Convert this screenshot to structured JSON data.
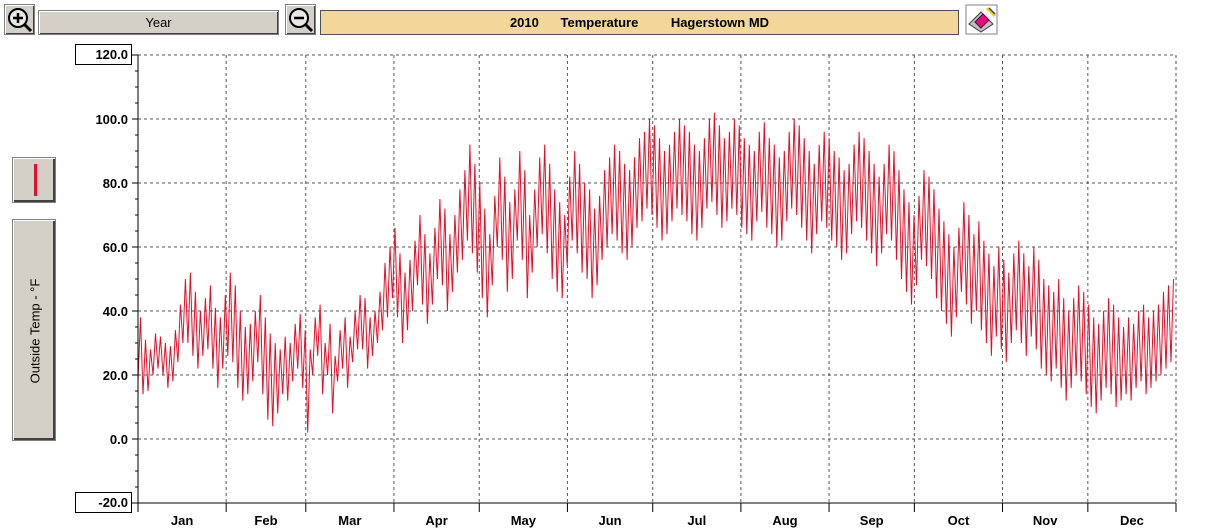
{
  "toolbar": {
    "zoom_in_icon": "zoom-in-magnifier",
    "zoom_out_icon": "zoom-out-magnifier",
    "period_label": "Year",
    "title": "2010      Temperature         Hagerstown MD",
    "print_icon": "printer-with-pen-icon"
  },
  "side": {
    "series_color": "#e0102a",
    "axis_label": "Outside Temp - °F"
  },
  "chart_data": {
    "type": "line",
    "title": "2010      Temperature         Hagerstown MD",
    "ylabel": "Outside Temp - °F",
    "ylim": [
      -20.0,
      120.0
    ],
    "yticks": [
      "120.0",
      "100.0",
      "80.0",
      "60.0",
      "40.0",
      "20.0",
      "0.0",
      "-20.0"
    ],
    "months": [
      "Jan",
      "Feb",
      "Mar",
      "Apr",
      "May",
      "Jun",
      "Jul",
      "Aug",
      "Sep",
      "Oct",
      "Nov",
      "Dec"
    ],
    "grid": true,
    "line_color": "#e0102a",
    "daily_high": [
      38,
      31,
      28,
      33,
      32,
      30,
      29,
      34,
      42,
      50,
      52,
      46,
      40,
      44,
      48,
      41,
      38,
      45,
      52,
      48,
      40,
      35,
      36,
      40,
      45,
      38,
      33,
      30,
      28,
      32,
      30,
      36,
      39,
      34,
      28,
      38,
      42,
      30,
      36,
      26,
      34,
      38,
      32,
      40,
      45,
      44,
      38,
      40,
      46,
      55,
      60,
      66,
      58,
      52,
      56,
      62,
      70,
      64,
      58,
      66,
      75,
      72,
      64,
      70,
      78,
      84,
      92,
      86,
      80,
      72,
      64,
      76,
      88,
      82,
      74,
      78,
      90,
      84,
      70,
      78,
      88,
      92,
      86,
      78,
      74,
      70,
      82,
      90,
      86,
      80,
      78,
      72,
      76,
      84,
      88,
      92,
      90,
      86,
      84,
      88,
      94,
      96,
      100,
      98,
      94,
      90,
      92,
      96,
      100,
      98,
      96,
      92,
      90,
      94,
      100,
      102,
      98,
      94,
      96,
      100,
      98,
      94,
      92,
      90,
      96,
      99,
      94,
      92,
      88,
      90,
      96,
      100,
      98,
      94,
      90,
      86,
      92,
      96,
      94,
      90,
      88,
      84,
      86,
      92,
      96,
      94,
      90,
      86,
      82,
      86,
      92,
      90,
      84,
      78,
      74,
      70,
      76,
      84,
      82,
      78,
      72,
      68,
      64,
      60,
      66,
      74,
      70,
      64,
      68,
      62,
      58,
      54,
      60,
      56,
      52,
      58,
      62,
      58,
      54,
      60,
      56,
      50,
      48,
      46,
      50,
      44,
      40,
      44,
      48,
      46,
      42,
      38,
      36,
      40,
      44,
      42,
      38,
      35,
      38,
      36,
      40,
      42,
      38,
      40,
      42,
      46,
      48,
      50
    ],
    "daily_low": [
      18,
      14,
      15,
      20,
      22,
      20,
      16,
      18,
      24,
      30,
      30,
      26,
      22,
      26,
      28,
      22,
      16,
      22,
      26,
      24,
      16,
      12,
      14,
      18,
      24,
      14,
      6,
      4,
      8,
      14,
      12,
      18,
      22,
      16,
      2,
      20,
      26,
      14,
      20,
      8,
      18,
      22,
      16,
      24,
      28,
      28,
      22,
      26,
      30,
      34,
      38,
      44,
      38,
      30,
      34,
      40,
      48,
      42,
      36,
      42,
      50,
      48,
      40,
      46,
      52,
      56,
      62,
      58,
      52,
      44,
      38,
      48,
      60,
      56,
      46,
      50,
      62,
      56,
      44,
      52,
      60,
      64,
      58,
      50,
      46,
      44,
      54,
      62,
      58,
      52,
      50,
      44,
      48,
      56,
      60,
      64,
      62,
      58,
      56,
      60,
      66,
      68,
      72,
      70,
      66,
      62,
      64,
      68,
      72,
      70,
      68,
      64,
      62,
      66,
      72,
      74,
      70,
      66,
      68,
      72,
      70,
      66,
      64,
      62,
      68,
      71,
      66,
      64,
      60,
      62,
      68,
      72,
      70,
      66,
      62,
      58,
      64,
      68,
      66,
      62,
      60,
      56,
      58,
      64,
      68,
      66,
      62,
      58,
      54,
      58,
      64,
      62,
      56,
      50,
      46,
      42,
      48,
      56,
      54,
      50,
      44,
      40,
      36,
      32,
      38,
      46,
      42,
      36,
      40,
      34,
      30,
      26,
      32,
      28,
      24,
      30,
      34,
      30,
      26,
      32,
      28,
      22,
      20,
      18,
      22,
      16,
      12,
      16,
      20,
      18,
      14,
      10,
      8,
      12,
      16,
      14,
      10,
      12,
      14,
      12,
      16,
      18,
      14,
      16,
      18,
      20,
      22,
      24
    ]
  }
}
